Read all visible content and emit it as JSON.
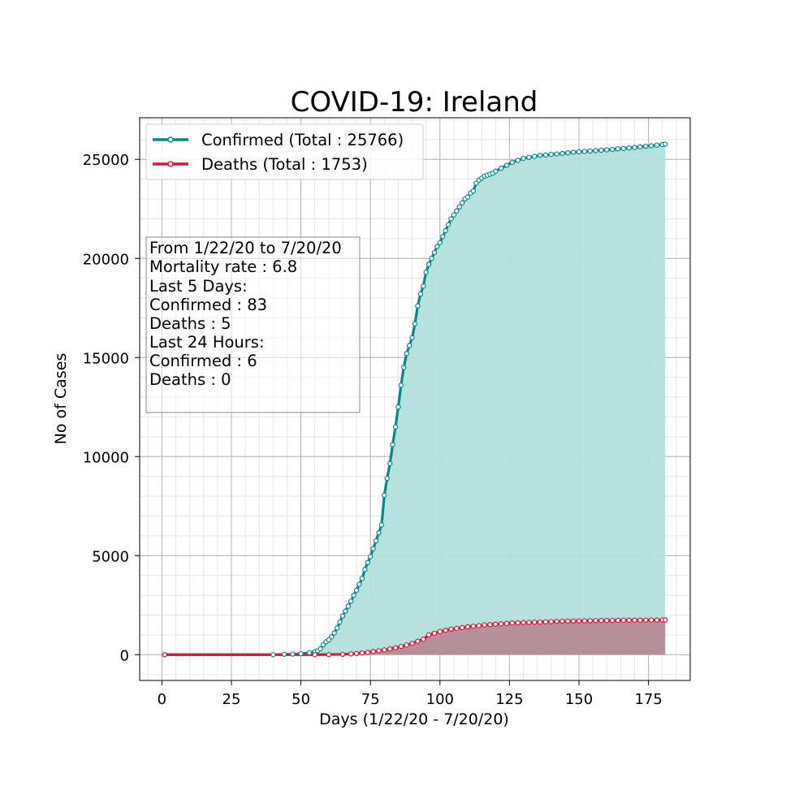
{
  "chart_data": {
    "type": "line",
    "title": "COVID-19: Ireland",
    "xlabel": "Days (1/22/20 - 7/20/20)",
    "ylabel": "No of Cases",
    "xlim": [
      -8,
      190
    ],
    "ylim": [
      -1300,
      27100
    ],
    "xticks": [
      0,
      25,
      50,
      75,
      100,
      125,
      150,
      175
    ],
    "yticks": [
      0,
      5000,
      10000,
      15000,
      20000,
      25000
    ],
    "grid": true,
    "minor_grid": true,
    "legend_position": "top-left",
    "info_lines": [
      "From 1/22/20 to 7/20/20",
      "Mortality rate : 6.8",
      "Last 5 Days:",
      "Confirmed : 83",
      "Deaths : 5",
      "Last 24 Hours:",
      "Confirmed : 6",
      "Deaths : 0"
    ],
    "series": [
      {
        "name": "Confirmed (Total : 25766)",
        "color": "#008b8b",
        "fill": "#b2dfdb",
        "x": [
          1,
          40,
          44,
          47,
          50,
          53,
          55,
          56,
          57,
          58,
          59,
          60,
          61,
          62,
          63,
          64,
          65,
          66,
          67,
          68,
          69,
          70,
          71,
          72,
          73,
          74,
          75,
          76,
          77,
          78,
          79,
          80,
          81,
          82,
          83,
          84,
          85,
          86,
          87,
          88,
          89,
          90,
          91,
          92,
          93,
          94,
          95,
          96,
          97,
          98,
          99,
          100,
          101,
          102,
          103,
          104,
          105,
          106,
          107,
          108,
          109,
          110,
          111,
          112,
          113,
          114,
          115,
          116,
          117,
          118,
          119,
          120,
          122,
          124,
          126,
          128,
          130,
          132,
          134,
          136,
          138,
          140,
          142,
          144,
          146,
          148,
          150,
          152,
          154,
          156,
          158,
          160,
          162,
          164,
          166,
          168,
          170,
          172,
          174,
          176,
          178,
          180,
          181
        ],
        "y": [
          0,
          0,
          20,
          30,
          50,
          100,
          150,
          200,
          300,
          500,
          650,
          750,
          900,
          1100,
          1350,
          1650,
          1950,
          2200,
          2450,
          2700,
          3000,
          3250,
          3550,
          3850,
          4300,
          4650,
          4950,
          5350,
          5750,
          6150,
          6550,
          8050,
          8900,
          9650,
          10600,
          11500,
          12500,
          13600,
          14500,
          15200,
          15600,
          16000,
          16700,
          17600,
          18200,
          18600,
          19300,
          19700,
          20000,
          20300,
          20600,
          20800,
          21100,
          21400,
          21700,
          22000,
          22200,
          22400,
          22600,
          22800,
          23000,
          23100,
          23300,
          23400,
          23800,
          23950,
          24050,
          24150,
          24200,
          24250,
          24300,
          24400,
          24550,
          24700,
          24850,
          24950,
          25050,
          25100,
          25150,
          25200,
          25220,
          25250,
          25270,
          25300,
          25330,
          25360,
          25380,
          25400,
          25420,
          25440,
          25460,
          25480,
          25500,
          25530,
          25550,
          25580,
          25600,
          25630,
          25660,
          25690,
          25720,
          25750,
          25766
        ]
      },
      {
        "name": "Deaths (Total : 1753)",
        "color": "#dc143c",
        "fill": "#b58a96",
        "x": [
          1,
          55,
          60,
          65,
          68,
          70,
          72,
          74,
          76,
          78,
          80,
          82,
          84,
          86,
          88,
          90,
          92,
          94,
          96,
          98,
          100,
          102,
          104,
          106,
          108,
          110,
          112,
          114,
          116,
          118,
          120,
          122,
          124,
          126,
          128,
          130,
          132,
          134,
          136,
          138,
          140,
          142,
          144,
          146,
          148,
          150,
          152,
          154,
          156,
          158,
          160,
          162,
          164,
          166,
          168,
          170,
          172,
          174,
          176,
          178,
          180,
          181
        ],
        "y": [
          0,
          0,
          5,
          20,
          40,
          60,
          90,
          120,
          160,
          200,
          240,
          290,
          350,
          420,
          490,
          570,
          680,
          780,
          1000,
          1080,
          1170,
          1230,
          1290,
          1330,
          1370,
          1410,
          1440,
          1470,
          1500,
          1520,
          1540,
          1560,
          1580,
          1600,
          1610,
          1620,
          1630,
          1640,
          1650,
          1660,
          1670,
          1680,
          1690,
          1695,
          1700,
          1705,
          1710,
          1715,
          1720,
          1722,
          1725,
          1730,
          1735,
          1738,
          1740,
          1742,
          1745,
          1747,
          1749,
          1750,
          1752,
          1753
        ]
      }
    ]
  }
}
